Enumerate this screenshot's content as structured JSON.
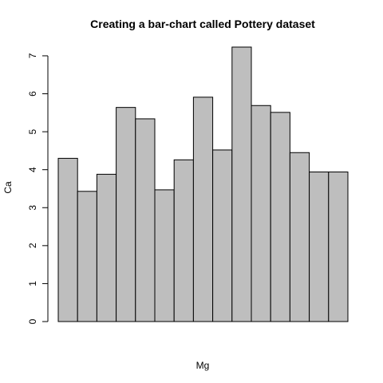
{
  "chart_data": {
    "type": "bar",
    "title": "Creating a bar-chart called Pottery dataset",
    "xlabel": "Mg",
    "ylabel": "Ca",
    "values": [
      4.3,
      3.43,
      3.88,
      5.64,
      5.34,
      3.47,
      4.26,
      5.91,
      4.52,
      7.23,
      5.69,
      5.51,
      4.45,
      3.94,
      3.94
    ],
    "ylim": [
      0,
      7.23
    ],
    "yticks": [
      "0",
      "1",
      "2",
      "3",
      "4",
      "5",
      "6",
      "7"
    ],
    "bar_fill": "#bebebe",
    "bar_stroke": "#000000",
    "grid": false,
    "legend": "none"
  }
}
